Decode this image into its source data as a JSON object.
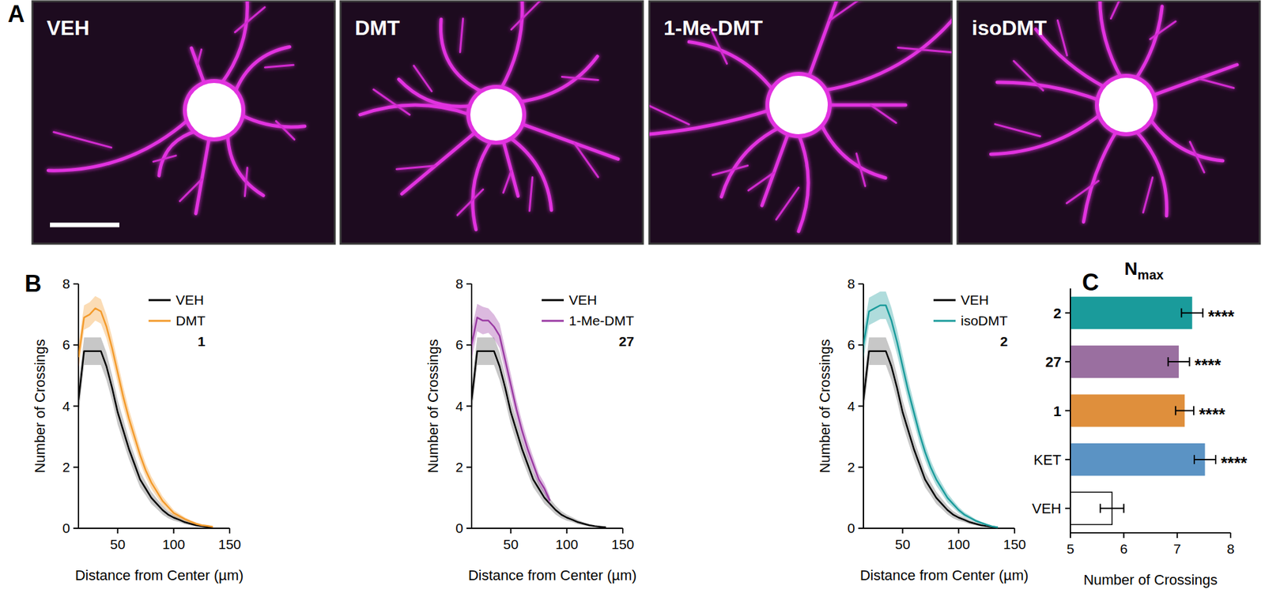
{
  "panel_labels": [
    "A",
    "B",
    "C"
  ],
  "image_labels": [
    "VEH",
    "DMT",
    "1-Me-DMT",
    "isoDMT"
  ],
  "chart_data": [
    {
      "type": "line",
      "xlabel": "Distance from Center (µm)",
      "ylabel": "Number of Crossings",
      "annotations": [
        "1"
      ],
      "x": [
        15,
        20,
        25,
        30,
        35,
        40,
        45,
        50,
        55,
        60,
        65,
        70,
        75,
        80,
        85,
        90,
        95,
        100,
        105,
        110,
        115,
        120,
        125,
        130,
        135
      ],
      "xlim": [
        15,
        150
      ],
      "xticks": [
        50,
        100,
        150
      ],
      "ylim": [
        0,
        8
      ],
      "yticks": [
        0,
        2,
        4,
        6,
        8
      ],
      "series": [
        {
          "name": "VEH",
          "color": "#000000",
          "values": [
            4.2,
            5.8,
            5.8,
            5.8,
            5.8,
            5.3,
            4.6,
            3.8,
            3.2,
            2.6,
            2.1,
            1.6,
            1.3,
            1.0,
            0.8,
            0.6,
            0.45,
            0.35,
            0.28,
            0.2,
            0.15,
            0.1,
            0.07,
            0.05,
            0.03
          ],
          "error": [
            0.5,
            0.45,
            0.45,
            0.45,
            0.45,
            0.45,
            0.42,
            0.4,
            0.37,
            0.33,
            0.3,
            0.26,
            0.22,
            0.2,
            0.17,
            0.15,
            0.12,
            0.1,
            0.08,
            0.07,
            0.05,
            0.04,
            0.03,
            0.02,
            0.02
          ]
        },
        {
          "name": "DMT",
          "color": "#f39a2b",
          "values": [
            5.6,
            6.9,
            7.0,
            7.2,
            7.1,
            6.6,
            5.9,
            5.1,
            4.3,
            3.6,
            3.0,
            2.4,
            1.9,
            1.5,
            1.2,
            0.9,
            0.7,
            0.5,
            0.4,
            0.3,
            0.22,
            0.15,
            0.1,
            0.08,
            0.05
          ],
          "error": [
            0.4,
            0.4,
            0.4,
            0.4,
            0.4,
            0.38,
            0.36,
            0.35,
            0.33,
            0.3,
            0.28,
            0.25,
            0.22,
            0.2,
            0.17,
            0.15,
            0.12,
            0.1,
            0.08,
            0.06,
            0.05,
            0.04,
            0.03,
            0.02,
            0.02
          ]
        }
      ]
    },
    {
      "type": "line",
      "xlabel": "Distance from Center (µm)",
      "ylabel": "Number of Crossings",
      "annotations": [
        "27"
      ],
      "x": [
        15,
        20,
        25,
        30,
        35,
        40,
        45,
        50,
        55,
        60,
        65,
        70,
        75,
        80,
        85,
        90,
        95,
        100,
        105,
        110,
        115,
        120,
        125,
        130,
        135
      ],
      "xlim": [
        15,
        150
      ],
      "xticks": [
        50,
        100,
        150
      ],
      "ylim": [
        0,
        8
      ],
      "yticks": [
        0,
        2,
        4,
        6,
        8
      ],
      "series": [
        {
          "name": "VEH",
          "color": "#000000",
          "values": [
            4.2,
            5.8,
            5.8,
            5.8,
            5.8,
            5.3,
            4.6,
            3.8,
            3.2,
            2.6,
            2.1,
            1.6,
            1.3,
            1.0,
            0.8,
            0.6,
            0.45,
            0.35,
            0.28,
            0.2,
            0.15,
            0.1,
            0.07,
            0.05,
            0.03
          ],
          "error": [
            0.5,
            0.45,
            0.45,
            0.45,
            0.45,
            0.45,
            0.42,
            0.4,
            0.37,
            0.33,
            0.3,
            0.26,
            0.22,
            0.2,
            0.17,
            0.15,
            0.12,
            0.1,
            0.08,
            0.07,
            0.05,
            0.04,
            0.03,
            0.02,
            0.02
          ]
        },
        {
          "name": "1-Me-DMT",
          "color": "#9a3aa3",
          "values": [
            6.0,
            6.9,
            6.8,
            6.8,
            6.6,
            6.3,
            5.5,
            4.7,
            3.9,
            3.2,
            2.6,
            2.1,
            1.6,
            1.3,
            0.9,
            null,
            null,
            null,
            null,
            null,
            null,
            null,
            null,
            null,
            null
          ],
          "error": [
            0.5,
            0.45,
            0.45,
            0.4,
            0.4,
            0.4,
            0.38,
            0.35,
            0.32,
            0.3,
            0.27,
            0.24,
            0.2,
            0.18,
            0.15,
            null,
            null,
            null,
            null,
            null,
            null,
            null,
            null,
            null,
            null
          ]
        }
      ]
    },
    {
      "type": "line",
      "xlabel": "Distance from Center (µm)",
      "ylabel": "Number of Crossings",
      "annotations": [
        "2"
      ],
      "x": [
        15,
        20,
        25,
        30,
        35,
        40,
        45,
        50,
        55,
        60,
        65,
        70,
        75,
        80,
        85,
        90,
        95,
        100,
        105,
        110,
        115,
        120,
        125,
        130,
        135
      ],
      "xlim": [
        15,
        150
      ],
      "xticks": [
        50,
        100,
        150
      ],
      "ylim": [
        0,
        8
      ],
      "yticks": [
        0,
        2,
        4,
        6,
        8
      ],
      "series": [
        {
          "name": "VEH",
          "color": "#000000",
          "values": [
            4.2,
            5.8,
            5.8,
            5.8,
            5.8,
            5.3,
            4.6,
            3.8,
            3.2,
            2.6,
            2.1,
            1.6,
            1.3,
            1.0,
            0.8,
            0.6,
            0.45,
            0.35,
            0.28,
            0.2,
            0.15,
            0.1,
            0.07,
            0.05,
            0.03
          ],
          "error": [
            0.5,
            0.45,
            0.45,
            0.45,
            0.45,
            0.45,
            0.42,
            0.4,
            0.37,
            0.33,
            0.3,
            0.26,
            0.22,
            0.2,
            0.17,
            0.15,
            0.12,
            0.1,
            0.08,
            0.07,
            0.05,
            0.04,
            0.03,
            0.02,
            0.02
          ]
        },
        {
          "name": "isoDMT",
          "color": "#1a9b9b",
          "values": [
            6.0,
            7.1,
            7.2,
            7.3,
            7.3,
            6.8,
            6.1,
            5.3,
            4.5,
            3.8,
            3.1,
            2.5,
            2.0,
            1.6,
            1.3,
            1.0,
            0.8,
            0.6,
            0.45,
            0.35,
            0.25,
            0.18,
            0.12,
            0.06,
            0.03
          ],
          "error": [
            0.45,
            0.45,
            0.45,
            0.45,
            0.45,
            0.42,
            0.4,
            0.38,
            0.35,
            0.32,
            0.3,
            0.26,
            0.23,
            0.2,
            0.17,
            0.15,
            0.12,
            0.1,
            0.08,
            0.07,
            0.05,
            0.04,
            0.03,
            0.02,
            0.02
          ]
        }
      ]
    },
    {
      "type": "bar",
      "orientation": "horizontal",
      "title": "N",
      "title_subscript": "max",
      "xlabel": "Number of Crossings",
      "categories": [
        "2",
        "27",
        "1",
        "KET",
        "VEH"
      ],
      "values": [
        7.28,
        7.03,
        7.14,
        7.52,
        5.78
      ],
      "errors": [
        0.2,
        0.2,
        0.17,
        0.2,
        0.22
      ],
      "colors": [
        "#1a9b9b",
        "#9a6fa0",
        "#df8f3c",
        "#5b93c4",
        "#ffffff"
      ],
      "significance": [
        "****",
        "****",
        "****",
        "****",
        null
      ],
      "xlim": [
        5,
        8
      ],
      "xticks": [
        5,
        6,
        7,
        8
      ]
    }
  ]
}
